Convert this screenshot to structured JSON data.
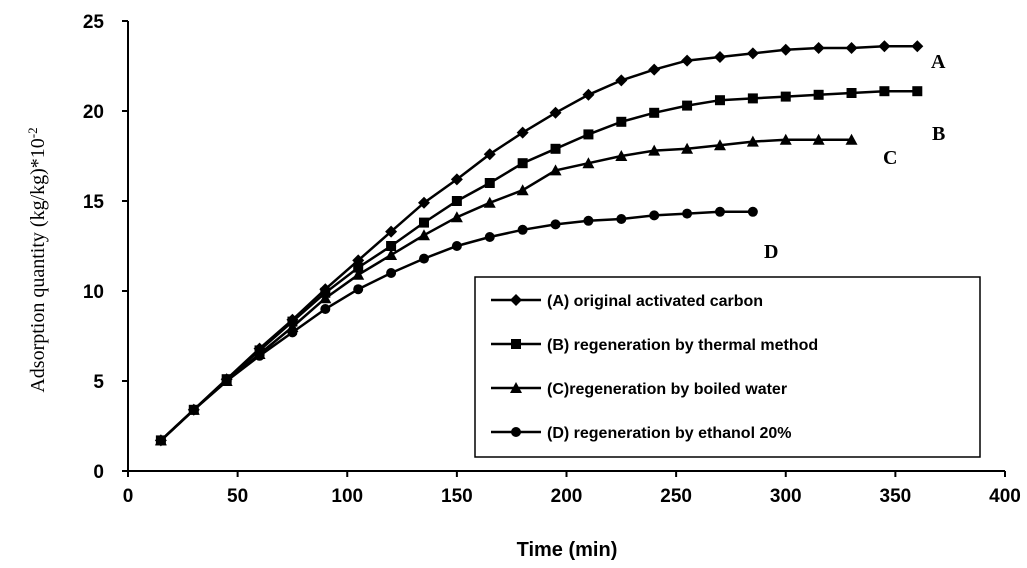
{
  "chart_data": {
    "type": "line",
    "title": "",
    "xlabel": "Time (min)",
    "ylabel": "Adsorption quantity (kg/kg)*10",
    "ylabel_exponent": "-2",
    "xlim": [
      0,
      400
    ],
    "ylim": [
      0,
      25
    ],
    "xticks": [
      0,
      50,
      100,
      150,
      200,
      250,
      300,
      350,
      400
    ],
    "yticks": [
      0,
      5,
      10,
      15,
      20,
      25
    ],
    "grid": false,
    "legend_position": "bottom-right",
    "series": [
      {
        "name": "(A) original activated carbon",
        "curve_label": "A",
        "marker": "diamond",
        "x": [
          15,
          30,
          45,
          60,
          75,
          90,
          105,
          120,
          135,
          150,
          165,
          180,
          195,
          210,
          225,
          240,
          255,
          270,
          285,
          300,
          315,
          330,
          345,
          360
        ],
        "y": [
          1.7,
          3.4,
          5.1,
          6.8,
          8.4,
          10.1,
          11.7,
          13.3,
          14.9,
          16.2,
          17.6,
          18.8,
          19.9,
          20.9,
          21.7,
          22.3,
          22.8,
          23.0,
          23.2,
          23.4,
          23.5,
          23.5,
          23.6,
          23.6
        ]
      },
      {
        "name": "(B) regeneration by thermal method",
        "curve_label": "B",
        "marker": "square",
        "x": [
          15,
          30,
          45,
          60,
          75,
          90,
          105,
          120,
          135,
          150,
          165,
          180,
          195,
          210,
          225,
          240,
          255,
          270,
          285,
          300,
          315,
          330,
          345,
          360
        ],
        "y": [
          1.7,
          3.4,
          5.1,
          6.7,
          8.3,
          9.9,
          11.3,
          12.5,
          13.8,
          15.0,
          16.0,
          17.1,
          17.9,
          18.7,
          19.4,
          19.9,
          20.3,
          20.6,
          20.7,
          20.8,
          20.9,
          21.0,
          21.1,
          21.1
        ]
      },
      {
        "name": "(C)regeneration by boiled water",
        "curve_label": "C",
        "marker": "triangle",
        "x": [
          15,
          30,
          45,
          60,
          75,
          90,
          105,
          120,
          135,
          150,
          165,
          180,
          195,
          210,
          225,
          240,
          255,
          270,
          285,
          300,
          315,
          330
        ],
        "y": [
          1.7,
          3.4,
          5.0,
          6.5,
          8.0,
          9.6,
          10.9,
          12.0,
          13.1,
          14.1,
          14.9,
          15.6,
          16.7,
          17.1,
          17.5,
          17.8,
          17.9,
          18.1,
          18.3,
          18.4,
          18.4,
          18.4
        ]
      },
      {
        "name": "(D) regeneration by ethanol 20%",
        "curve_label": "D",
        "marker": "circle",
        "x": [
          15,
          30,
          45,
          60,
          75,
          90,
          105,
          120,
          135,
          150,
          165,
          180,
          195,
          210,
          225,
          240,
          255,
          270,
          285
        ],
        "y": [
          1.7,
          3.4,
          5.0,
          6.4,
          7.7,
          9.0,
          10.1,
          11.0,
          11.8,
          12.5,
          13.0,
          13.4,
          13.7,
          13.9,
          14.0,
          14.2,
          14.3,
          14.4,
          14.4
        ]
      }
    ]
  }
}
